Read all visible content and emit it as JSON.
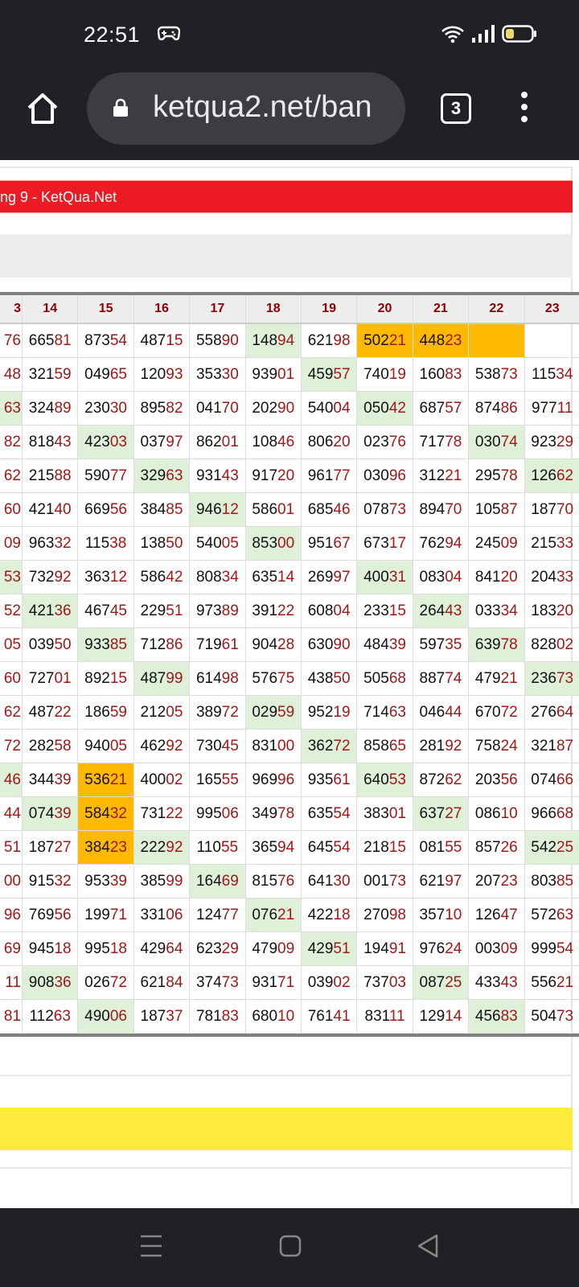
{
  "status_bar": {
    "time": "22:51",
    "icons": [
      "gamepad-icon",
      "wifi-icon",
      "signal-icon",
      "battery-icon"
    ]
  },
  "browser": {
    "url": "ketqua2.net/ban",
    "tab_count": "3",
    "icons": [
      "home-icon",
      "lock-icon",
      "tabs-icon",
      "menu-icon"
    ]
  },
  "banner": {
    "title": "ng 9 - KetQua.Net",
    "color": "#ed1c24"
  },
  "colors": {
    "green_highlight": "#dff0d8",
    "orange_highlight": "#ffb900",
    "digit_red": "#a01818",
    "header_text": "#8b0000"
  },
  "table": {
    "headers": [
      "3",
      "14",
      "15",
      "16",
      "17",
      "18",
      "19",
      "20",
      "21",
      "22",
      "23"
    ],
    "rows": [
      [
        "76",
        "66581",
        "87354",
        "48715",
        "55890",
        "14894",
        "62198",
        "50221",
        "44823",
        "",
        ""
      ],
      [
        "48",
        "32159",
        "04965",
        "12093",
        "35330",
        "93901",
        "45957",
        "74019",
        "16083",
        "53873",
        "11534"
      ],
      [
        "63",
        "32489",
        "23030",
        "89582",
        "04170",
        "20290",
        "54004",
        "05042",
        "68757",
        "87486",
        "97711"
      ],
      [
        "82",
        "81843",
        "42303",
        "03797",
        "86201",
        "10846",
        "80620",
        "02376",
        "71778",
        "03074",
        "92329"
      ],
      [
        "62",
        "21588",
        "59077",
        "32963",
        "93143",
        "91720",
        "96177",
        "03096",
        "31221",
        "29578",
        "12662"
      ],
      [
        "60",
        "42140",
        "66956",
        "38485",
        "94612",
        "58601",
        "68546",
        "07873",
        "89470",
        "10587",
        "18770"
      ],
      [
        "09",
        "96332",
        "11538",
        "13850",
        "54005",
        "85300",
        "95167",
        "67317",
        "76294",
        "24509",
        "21533"
      ],
      [
        "53",
        "73292",
        "36312",
        "58642",
        "80834",
        "63514",
        "26997",
        "40031",
        "08304",
        "84120",
        "20433"
      ],
      [
        "52",
        "42136",
        "46745",
        "22951",
        "97389",
        "39122",
        "60804",
        "23315",
        "26443",
        "03334",
        "18320"
      ],
      [
        "05",
        "03950",
        "93385",
        "71286",
        "71961",
        "90428",
        "63090",
        "48439",
        "59735",
        "63978",
        "82802"
      ],
      [
        "60",
        "72701",
        "89215",
        "48799",
        "61498",
        "57675",
        "43850",
        "50568",
        "88774",
        "47921",
        "23673"
      ],
      [
        "62",
        "48722",
        "18659",
        "21205",
        "38972",
        "02959",
        "95219",
        "71463",
        "04644",
        "67072",
        "27664"
      ],
      [
        "72",
        "28258",
        "94005",
        "46292",
        "73045",
        "83100",
        "36272",
        "85865",
        "28192",
        "75824",
        "32187"
      ],
      [
        "46",
        "34439",
        "53621",
        "40002",
        "16555",
        "96996",
        "93561",
        "64053",
        "87262",
        "20356",
        "07466"
      ],
      [
        "44",
        "07439",
        "58432",
        "73122",
        "99506",
        "34978",
        "63554",
        "38301",
        "63727",
        "08610",
        "96668"
      ],
      [
        "51",
        "18727",
        "38423",
        "22292",
        "11055",
        "36594",
        "64554",
        "21815",
        "08155",
        "85726",
        "54225"
      ],
      [
        "00",
        "91532",
        "95339",
        "38599",
        "16469",
        "81576",
        "64130",
        "00173",
        "62197",
        "20723",
        "80385"
      ],
      [
        "96",
        "76956",
        "19971",
        "33106",
        "12477",
        "07621",
        "42218",
        "27098",
        "35710",
        "12647",
        "57263"
      ],
      [
        "69",
        "94518",
        "99518",
        "42964",
        "62329",
        "47909",
        "42951",
        "19491",
        "97624",
        "00309",
        "99954"
      ],
      [
        "11",
        "90836",
        "02672",
        "62184",
        "37473",
        "93171",
        "03902",
        "73703",
        "08725",
        "43343",
        "55621"
      ],
      [
        "81",
        "11263",
        "49006",
        "18737",
        "78183",
        "68010",
        "76141",
        "83111",
        "12914",
        "45683",
        "50473"
      ]
    ],
    "highlights": [
      "-----g-ooo-",
      "------g----",
      "g------g---",
      "--g------g-",
      "---g------g",
      "----g------",
      "-----g-----",
      "g------g---",
      "-g------g--",
      "--g------g-",
      "---g------g",
      "-----g-----",
      "------g----",
      "g-o----g---",
      "-go-----g--",
      "--og------g",
      "----g------",
      "-----g-----",
      "------g----",
      "-g------g--",
      "--g------g-"
    ]
  }
}
